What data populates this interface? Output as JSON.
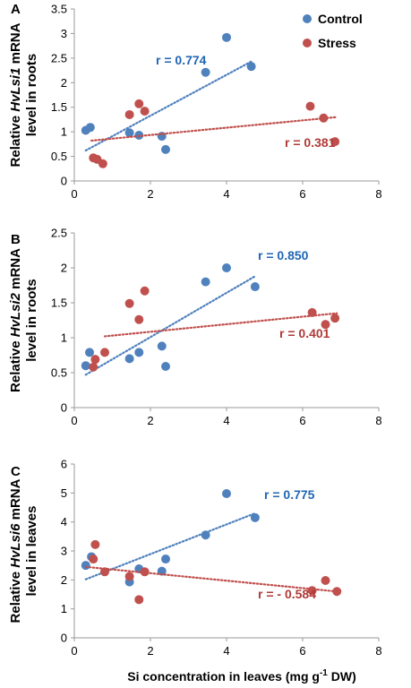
{
  "colors": {
    "control": "#4f81bd",
    "stress": "#c0504d",
    "control_text": "#1f66b4",
    "stress_text": "#b03a37"
  },
  "legend": {
    "control": "Control",
    "stress": "Stress",
    "placement": "top-right"
  },
  "xlabel_parts": [
    "Si concentration in leaves (mg g",
    "-1",
    " DW)"
  ],
  "chart_data": [
    {
      "type": "scatter",
      "panel": "A",
      "ylabel_parts": [
        "Relative ",
        "HvLsi1",
        " mRNA",
        "level in roots"
      ],
      "xlim": [
        0,
        8
      ],
      "ylim": [
        0,
        3.5
      ],
      "xticks": [
        "0",
        "2",
        "4",
        "6",
        "8"
      ],
      "yticks": [
        "0",
        "0.5",
        "1",
        "1.5",
        "2",
        "2.5",
        "3",
        "3.5"
      ],
      "series": [
        {
          "name": "Control",
          "points": [
            [
              0.3,
              1.03
            ],
            [
              0.42,
              1.09
            ],
            [
              1.45,
              0.98
            ],
            [
              1.7,
              0.93
            ],
            [
              2.3,
              0.91
            ],
            [
              2.4,
              0.64
            ],
            [
              3.45,
              2.21
            ],
            [
              4.0,
              2.92
            ],
            [
              4.65,
              2.33
            ]
          ],
          "trend": [
            [
              0.3,
              0.62
            ],
            [
              4.65,
              2.43
            ]
          ],
          "r_label": "r = 0.774"
        },
        {
          "name": "Stress",
          "points": [
            [
              0.5,
              0.47
            ],
            [
              0.6,
              0.44
            ],
            [
              0.75,
              0.35
            ],
            [
              1.45,
              1.35
            ],
            [
              1.7,
              1.57
            ],
            [
              1.85,
              1.42
            ],
            [
              6.2,
              1.52
            ],
            [
              6.55,
              1.28
            ],
            [
              6.85,
              0.8
            ]
          ],
          "trend": [
            [
              0.45,
              0.82
            ],
            [
              6.9,
              1.3
            ]
          ],
          "r_label": "r = 0.381"
        }
      ]
    },
    {
      "type": "scatter",
      "panel": "B",
      "ylabel_parts": [
        "Relative ",
        "HvLsi2",
        " mRNA",
        "level in roots"
      ],
      "xlim": [
        0,
        8
      ],
      "ylim": [
        0,
        2.5
      ],
      "xticks": [
        "0",
        "2",
        "4",
        "6",
        "8"
      ],
      "yticks": [
        "0",
        "0.5",
        "1",
        "1.5",
        "2",
        "2.5"
      ],
      "series": [
        {
          "name": "Control",
          "points": [
            [
              0.3,
              0.6
            ],
            [
              0.4,
              0.79
            ],
            [
              1.45,
              0.7
            ],
            [
              1.7,
              0.79
            ],
            [
              2.3,
              0.88
            ],
            [
              2.4,
              0.59
            ],
            [
              3.45,
              1.8
            ],
            [
              4.0,
              2.0
            ],
            [
              4.75,
              1.73
            ]
          ],
          "trend": [
            [
              0.3,
              0.47
            ],
            [
              4.75,
              1.88
            ]
          ],
          "r_label": "r = 0.850"
        },
        {
          "name": "Stress",
          "points": [
            [
              0.5,
              0.58
            ],
            [
              0.55,
              0.69
            ],
            [
              0.8,
              0.79
            ],
            [
              1.45,
              1.49
            ],
            [
              1.7,
              1.26
            ],
            [
              1.85,
              1.67
            ],
            [
              6.25,
              1.36
            ],
            [
              6.6,
              1.19
            ],
            [
              6.85,
              1.28
            ]
          ],
          "trend": [
            [
              0.8,
              1.02
            ],
            [
              6.9,
              1.35
            ]
          ],
          "r_label": "r = 0.401"
        }
      ]
    },
    {
      "type": "scatter",
      "panel": "C",
      "ylabel_parts": [
        "Relative ",
        "HvLsi6",
        " mRNA",
        "level in leaves"
      ],
      "xlim": [
        0,
        8
      ],
      "ylim": [
        0,
        6
      ],
      "xticks": [
        "0",
        "2",
        "4",
        "6",
        "8"
      ],
      "yticks": [
        "0",
        "1",
        "2",
        "3",
        "4",
        "5",
        "6"
      ],
      "series": [
        {
          "name": "Control",
          "points": [
            [
              0.3,
              2.5
            ],
            [
              0.45,
              2.8
            ],
            [
              1.45,
              1.93
            ],
            [
              1.7,
              2.38
            ],
            [
              2.3,
              2.3
            ],
            [
              2.4,
              2.72
            ],
            [
              3.45,
              3.55
            ],
            [
              4.0,
              4.98
            ],
            [
              4.75,
              4.15
            ]
          ],
          "trend": [
            [
              0.3,
              2.02
            ],
            [
              4.75,
              4.3
            ]
          ],
          "r_label": "r = 0.775"
        },
        {
          "name": "Stress",
          "points": [
            [
              0.5,
              2.72
            ],
            [
              0.55,
              3.22
            ],
            [
              0.8,
              2.28
            ],
            [
              1.45,
              2.12
            ],
            [
              1.7,
              1.32
            ],
            [
              1.85,
              2.28
            ],
            [
              6.25,
              1.63
            ],
            [
              6.6,
              1.98
            ],
            [
              6.9,
              1.6
            ]
          ],
          "trend": [
            [
              0.3,
              2.45
            ],
            [
              6.9,
              1.6
            ]
          ],
          "r_label": "r = - 0.584"
        }
      ]
    }
  ]
}
